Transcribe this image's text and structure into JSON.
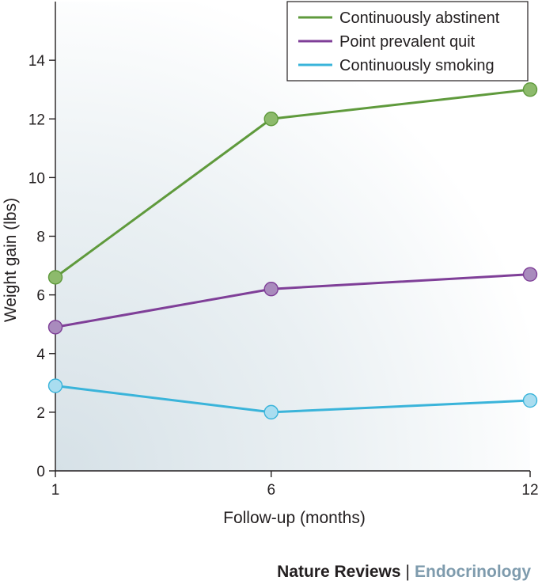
{
  "chart_data": {
    "type": "line",
    "x": [
      1,
      6,
      12
    ],
    "xlabel": "Follow-up (months)",
    "ylabel": "Weight gain (lbs)",
    "ylim": [
      0,
      16
    ],
    "yticks": [
      0,
      2,
      4,
      6,
      8,
      10,
      12,
      14
    ],
    "xticks": [
      1,
      6,
      12
    ],
    "legend_position": "top-right",
    "grid": false,
    "series": [
      {
        "name": "Continuously abstinent",
        "values": [
          6.6,
          12.0,
          13.0
        ],
        "color": "#5f9a3c",
        "marker_color": "#8dba6c"
      },
      {
        "name": "Point prevalent quit",
        "values": [
          4.9,
          6.2,
          6.7
        ],
        "color": "#7f3f98",
        "marker_color": "#a98bbd"
      },
      {
        "name": "Continuously smoking",
        "values": [
          2.9,
          2.0,
          2.4
        ],
        "color": "#3ab4da",
        "marker_color": "#a9ddf0"
      }
    ]
  },
  "footer": {
    "journal": "Nature Reviews",
    "separator": "|",
    "subject": "Endocrinology",
    "subject_color": "#7e9bad"
  }
}
